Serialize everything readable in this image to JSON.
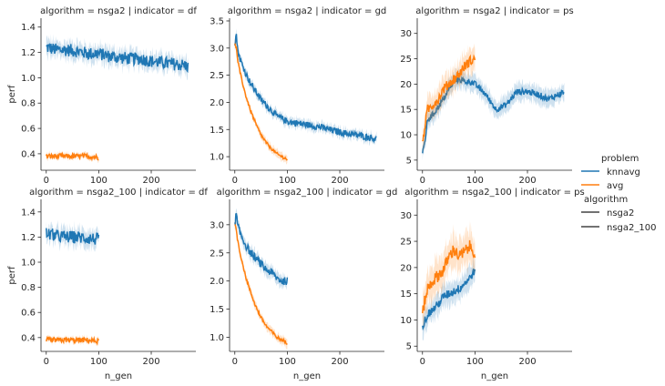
{
  "chart_data": {
    "type": "line",
    "facets": {
      "row_variable": "algorithm",
      "col_variable": "indicator",
      "rows": [
        "nsga2",
        "nsga2_100"
      ],
      "cols": [
        "df",
        "gd",
        "ps"
      ]
    },
    "xlabel": "n_gen",
    "ylabel": "perf",
    "xticks": [
      0,
      100,
      200
    ],
    "xlim": [
      -10,
      285
    ],
    "legend": {
      "placement": "right",
      "hue_title": "problem",
      "hue_entries": [
        {
          "name": "knnavg",
          "color": "#1f77b4"
        },
        {
          "name": "avg",
          "color": "#ff7f0e"
        }
      ],
      "style_title": "algorithm",
      "style_entries": [
        {
          "name": "nsga2",
          "color": "#444444"
        },
        {
          "name": "nsga2_100",
          "color": "#444444"
        }
      ]
    },
    "panels": [
      {
        "title": "algorithm = nsga2 | indicator = df",
        "ylim": [
          0.27,
          1.47
        ],
        "yticks": [
          0.4,
          0.6,
          0.8,
          1.0,
          1.2,
          1.4
        ],
        "ytick_labels": [
          "0.4",
          "0.6",
          "0.8",
          "1.0",
          "1.2",
          "1.4"
        ],
        "series": [
          {
            "name": "knnavg",
            "color": "#1f77b4",
            "x": [
              0,
              20,
              40,
              60,
              80,
              100,
              120,
              140,
              160,
              180,
              200,
              220,
              240,
              260,
              270
            ],
            "y": [
              1.24,
              1.22,
              1.22,
              1.21,
              1.19,
              1.19,
              1.17,
              1.16,
              1.15,
              1.15,
              1.13,
              1.12,
              1.11,
              1.1,
              1.09
            ],
            "band": 0.06,
            "jitter": 0.05
          },
          {
            "name": "avg",
            "color": "#ff7f0e",
            "x": [
              0,
              20,
              40,
              60,
              80,
              100
            ],
            "y": [
              0.38,
              0.38,
              0.38,
              0.38,
              0.38,
              0.37
            ],
            "band": 0.02,
            "jitter": 0.02
          }
        ]
      },
      {
        "title": "algorithm = nsga2 | indicator = gd",
        "ylim": [
          0.75,
          3.55
        ],
        "yticks": [
          1.0,
          1.5,
          2.0,
          2.5,
          3.0,
          3.5
        ],
        "ytick_labels": [
          "1.0",
          "1.5",
          "2.0",
          "2.5",
          "3.0",
          "3.5"
        ],
        "series": [
          {
            "name": "knnavg",
            "color": "#1f77b4",
            "x": [
              0,
              3,
              5,
              10,
              20,
              30,
              40,
              50,
              60,
              80,
              100,
              130,
              160,
              200,
              230,
              260,
              270
            ],
            "y": [
              3.1,
              3.25,
              3.0,
              2.8,
              2.55,
              2.35,
              2.2,
              2.05,
              1.95,
              1.75,
              1.65,
              1.6,
              1.55,
              1.45,
              1.4,
              1.35,
              1.32
            ],
            "band": 0.08,
            "jitter": 0.06
          },
          {
            "name": "avg",
            "color": "#ff7f0e",
            "x": [
              0,
              3,
              5,
              10,
              15,
              20,
              30,
              40,
              50,
              60,
              70,
              80,
              90,
              100
            ],
            "y": [
              3.1,
              3.0,
              2.8,
              2.55,
              2.35,
              2.15,
              1.85,
              1.6,
              1.4,
              1.25,
              1.15,
              1.05,
              1.0,
              0.95
            ],
            "band": 0.07,
            "jitter": 0.03
          }
        ]
      },
      {
        "title": "algorithm = nsga2 | indicator = ps",
        "ylim": [
          3,
          33
        ],
        "yticks": [
          5,
          10,
          15,
          20,
          25,
          30
        ],
        "ytick_labels": [
          "5",
          "10",
          "15",
          "20",
          "25",
          "30"
        ],
        "series": [
          {
            "name": "knnavg",
            "color": "#1f77b4",
            "x": [
              0,
              5,
              10,
              20,
              30,
              40,
              50,
              60,
              70,
              80,
              90,
              100,
              120,
              140,
              160,
              180,
              200,
              220,
              240,
              260,
              270
            ],
            "y": [
              6,
              9,
              13,
              14,
              15.5,
              17,
              19,
              20.5,
              21,
              20.5,
              20.5,
              20,
              18,
              15,
              16,
              18.5,
              18.5,
              18,
              17,
              18,
              18.5
            ],
            "band": 1.6,
            "jitter": 0.6
          },
          {
            "name": "avg",
            "color": "#ff7f0e",
            "x": [
              0,
              5,
              10,
              20,
              30,
              40,
              50,
              60,
              70,
              80,
              90,
              100
            ],
            "y": [
              8,
              12,
              15,
              16,
              17,
              19,
              20,
              21,
              22,
              23.5,
              24.5,
              25
            ],
            "band": 2.2,
            "jitter": 1.0
          }
        ]
      },
      {
        "title": "algorithm = nsga2_100 | indicator = df",
        "ylim": [
          0.29,
          1.5
        ],
        "yticks": [
          0.4,
          0.6,
          0.8,
          1.0,
          1.2,
          1.4
        ],
        "ytick_labels": [
          "0.4",
          "0.6",
          "0.8",
          "1.0",
          "1.2",
          "1.4"
        ],
        "series": [
          {
            "name": "knnavg",
            "color": "#1f77b4",
            "x": [
              0,
              20,
              40,
              60,
              80,
              100
            ],
            "y": [
              1.23,
              1.21,
              1.2,
              1.2,
              1.19,
              1.18
            ],
            "band": 0.06,
            "jitter": 0.05
          },
          {
            "name": "avg",
            "color": "#ff7f0e",
            "x": [
              0,
              20,
              40,
              60,
              80,
              100
            ],
            "y": [
              0.38,
              0.38,
              0.38,
              0.38,
              0.38,
              0.37
            ],
            "band": 0.02,
            "jitter": 0.02
          }
        ]
      },
      {
        "title": "algorithm = nsga2_100 | indicator = gd",
        "ylim": [
          0.75,
          3.45
        ],
        "yticks": [
          1.0,
          1.5,
          2.0,
          2.5,
          3.0
        ],
        "ytick_labels": [
          "1.0",
          "1.5",
          "2.0",
          "2.5",
          "3.0"
        ],
        "series": [
          {
            "name": "knnavg",
            "color": "#1f77b4",
            "x": [
              0,
              3,
              5,
              10,
              20,
              30,
              40,
              50,
              60,
              70,
              80,
              90,
              100
            ],
            "y": [
              3.0,
              3.2,
              3.0,
              2.85,
              2.65,
              2.5,
              2.4,
              2.3,
              2.2,
              2.15,
              2.05,
              2.0,
              2.0
            ],
            "band": 0.1,
            "jitter": 0.07
          },
          {
            "name": "avg",
            "color": "#ff7f0e",
            "x": [
              0,
              3,
              5,
              10,
              15,
              20,
              30,
              40,
              50,
              60,
              70,
              80,
              90,
              100
            ],
            "y": [
              3.0,
              2.9,
              2.75,
              2.5,
              2.3,
              2.1,
              1.8,
              1.55,
              1.35,
              1.2,
              1.1,
              1.0,
              0.95,
              0.9
            ],
            "band": 0.07,
            "jitter": 0.03
          }
        ]
      },
      {
        "title": "algorithm = nsga2_100 | indicator = ps",
        "ylim": [
          4,
          33
        ],
        "yticks": [
          5,
          10,
          15,
          20,
          25,
          30
        ],
        "ytick_labels": [
          "5",
          "10",
          "15",
          "20",
          "25",
          "30"
        ],
        "series": [
          {
            "name": "knnavg",
            "color": "#1f77b4",
            "x": [
              0,
              5,
              10,
              20,
              30,
              40,
              50,
              60,
              70,
              80,
              90,
              100
            ],
            "y": [
              9,
              10,
              11,
              12,
              13,
              14.5,
              15,
              15.5,
              16,
              17,
              18,
              19.5
            ],
            "band": 2.0,
            "jitter": 0.8
          },
          {
            "name": "avg",
            "color": "#ff7f0e",
            "x": [
              0,
              5,
              10,
              20,
              30,
              40,
              50,
              60,
              70,
              80,
              90,
              100
            ],
            "y": [
              11,
              14,
              16,
              17.5,
              18.5,
              19.5,
              22,
              23.5,
              22,
              23,
              24,
              23
            ],
            "band": 3.0,
            "jitter": 1.2
          }
        ]
      }
    ]
  }
}
